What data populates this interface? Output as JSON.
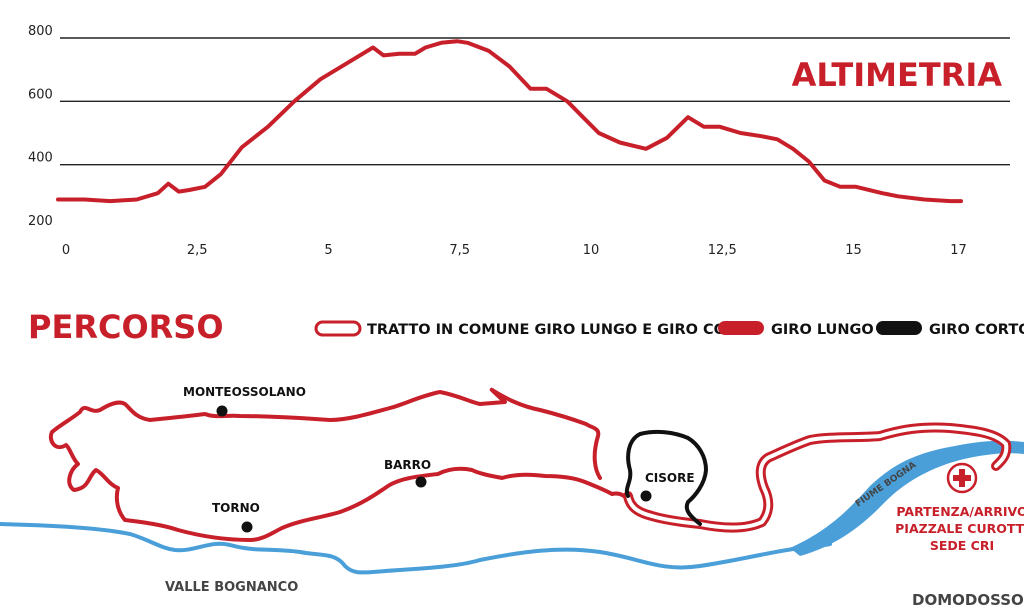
{
  "chart_data": {
    "type": "line",
    "title": "ALTIMETRIA",
    "xlabel": "",
    "ylabel": "",
    "x_ticks": [
      "0",
      "2,5",
      "5",
      "7,5",
      "10",
      "12,5",
      "15",
      "17"
    ],
    "y_ticks": [
      "800",
      "600",
      "400",
      "200"
    ],
    "xlim": [
      0,
      17.2
    ],
    "ylim": [
      200,
      800
    ],
    "grid": "horizontal",
    "line_color": "#c8202a",
    "series": [
      {
        "x": [
          0,
          0.5,
          1,
          1.5,
          1.9,
          2.1,
          2.3,
          2.5,
          2.8,
          3.1,
          3.5,
          4,
          4.5,
          5,
          5.5,
          6,
          6.2,
          6.5,
          6.8,
          7,
          7.3,
          7.6,
          7.8,
          8.2,
          8.6,
          9,
          9.3,
          9.7,
          10,
          10.3,
          10.7,
          11.2,
          11.6,
          12,
          12.3,
          12.6,
          13,
          13.4,
          13.7,
          14,
          14.3,
          14.6,
          14.9,
          15.2,
          15.7,
          16,
          16.5,
          17,
          17.2
        ],
        "y": [
          290,
          290,
          285,
          290,
          310,
          340,
          315,
          320,
          330,
          370,
          455,
          520,
          600,
          670,
          720,
          770,
          745,
          750,
          750,
          770,
          785,
          790,
          785,
          760,
          710,
          640,
          640,
          600,
          550,
          500,
          470,
          450,
          485,
          550,
          520,
          520,
          500,
          490,
          480,
          450,
          410,
          350,
          330,
          330,
          310,
          300,
          290,
          285,
          285
        ]
      }
    ]
  },
  "map": {
    "title": "PERCORSO",
    "legend": [
      {
        "label": "TRATTO IN COMUNE GIRO LUNGO E GIRO CORTO",
        "style": "outline"
      },
      {
        "label": "GIRO LUNGO",
        "color": "#c8202a"
      },
      {
        "label": "GIRO CORTO",
        "color": "#111111"
      }
    ],
    "places": [
      {
        "name": "MONTEOSSOLANO"
      },
      {
        "name": "BARRO"
      },
      {
        "name": "TORNO"
      },
      {
        "name": "CISORE"
      }
    ],
    "river_label": "FIUME BOGNA",
    "start_lines": [
      "PARTENZA/ARRIVO",
      "PIAZZALE CUROTTI",
      "SEDE CRI"
    ],
    "valley_label": "VALLE BOGNANCO",
    "town_label": "DOMODOSSOLA",
    "colors": {
      "red": "#c8202a",
      "blue": "#4a9fd9",
      "black": "#111111"
    }
  }
}
